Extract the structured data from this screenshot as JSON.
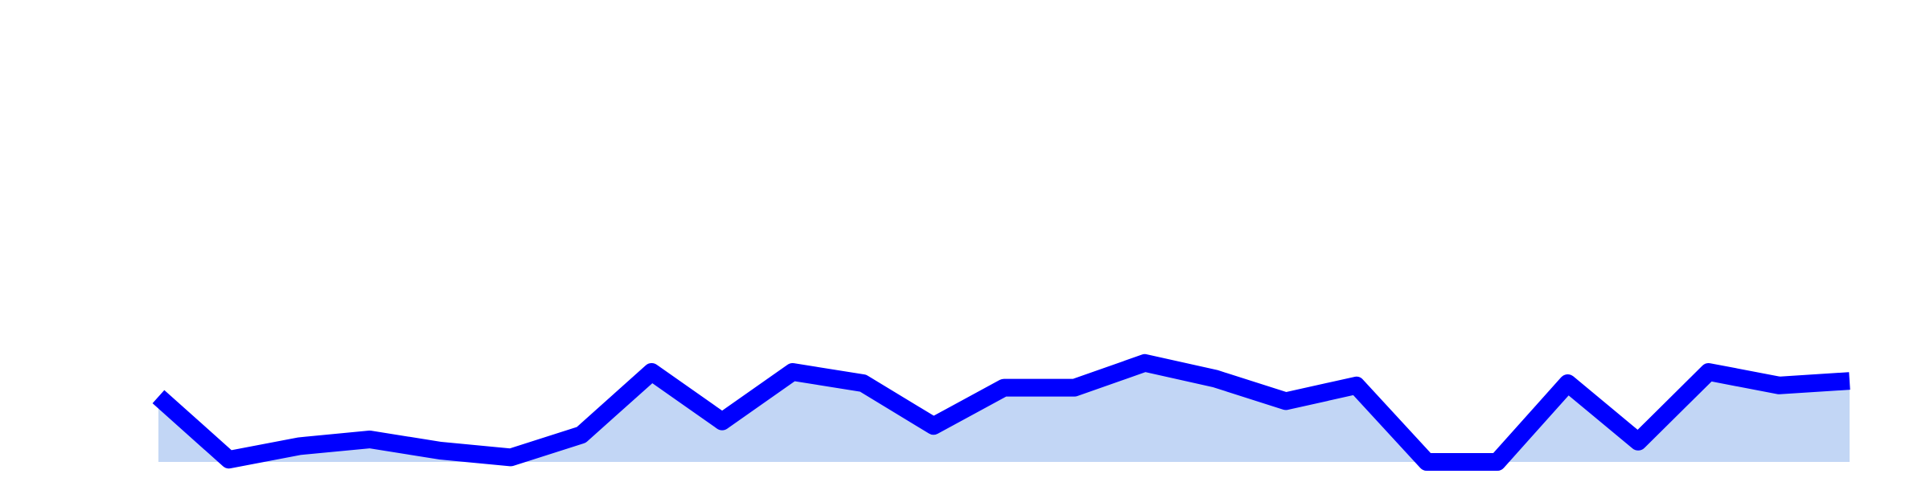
{
  "chart_data": {
    "type": "area",
    "title": "",
    "xlabel": "",
    "ylabel": "",
    "x": [
      0,
      1,
      2,
      3,
      4,
      5,
      6,
      7,
      8,
      9,
      10,
      11,
      12,
      13,
      14,
      15,
      16,
      17,
      18,
      19,
      20,
      21,
      22,
      23,
      24
    ],
    "series": [
      {
        "values": [
          14.5,
          0.5,
          3.5,
          5.0,
          2.5,
          1.0,
          6.0,
          20.0,
          9.0,
          20.0,
          17.5,
          8.0,
          16.5,
          16.5,
          22.0,
          18.5,
          13.5,
          17.0,
          0.0,
          0.0,
          17.5,
          4.5,
          20.0,
          17.0,
          18.0
        ],
        "line_color": "#0000ff",
        "fill_color": "#c2d6f5"
      }
    ],
    "ylim": [
      0,
      100
    ],
    "grid": false,
    "legend": "none",
    "axes_visible": false
  }
}
